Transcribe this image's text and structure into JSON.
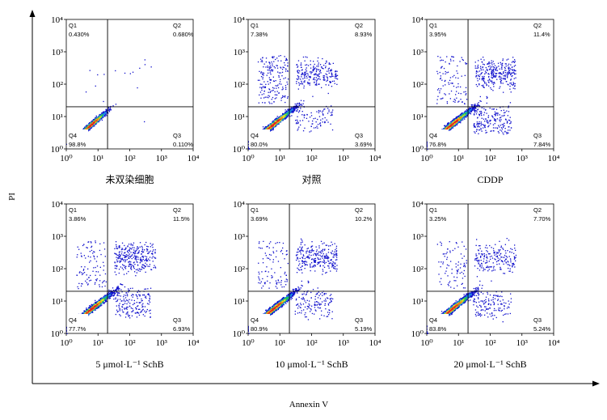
{
  "figure": {
    "ylabel": "PI",
    "xlabel": "Annexin V"
  },
  "chart_data": [
    {
      "type": "scatter",
      "title": "未双染细胞",
      "xscale": "log",
      "yscale": "log",
      "xlim": [
        1,
        10000
      ],
      "ylim": [
        1,
        10000
      ],
      "xticks": [
        "10⁰",
        "10¹",
        "10²",
        "10³",
        "10⁴"
      ],
      "yticks": [
        "10⁰",
        "10¹",
        "10²",
        "10³",
        "10⁴"
      ],
      "gate": {
        "x": 20,
        "y": 20
      },
      "quadrants": {
        "Q1": "0.430%",
        "Q2": "0.680%",
        "Q3": "0.110%",
        "Q4": "98.8%"
      },
      "color_scale": [
        "#1010cc",
        "#1e88e5",
        "#20c060",
        "#f0e020",
        "#f08020",
        "#e02020"
      ]
    },
    {
      "type": "scatter",
      "title": "对照",
      "xscale": "log",
      "yscale": "log",
      "xlim": [
        1,
        10000
      ],
      "ylim": [
        1,
        10000
      ],
      "xticks": [
        "10⁰",
        "10¹",
        "10²",
        "10³",
        "10⁴"
      ],
      "yticks": [
        "10⁰",
        "10¹",
        "10²",
        "10³",
        "10⁴"
      ],
      "gate": {
        "x": 20,
        "y": 20
      },
      "quadrants": {
        "Q1": "7.38%",
        "Q2": "8.93%",
        "Q3": "3.69%",
        "Q4": "80.0%"
      },
      "color_scale": [
        "#1010cc",
        "#1e88e5",
        "#20c060",
        "#f0e020",
        "#f08020",
        "#e02020"
      ]
    },
    {
      "type": "scatter",
      "title": "CDDP",
      "xscale": "log",
      "yscale": "log",
      "xlim": [
        1,
        10000
      ],
      "ylim": [
        1,
        10000
      ],
      "xticks": [
        "10⁰",
        "10¹",
        "10²",
        "10³",
        "10⁴"
      ],
      "yticks": [
        "10⁰",
        "10¹",
        "10²",
        "10³",
        "10⁴"
      ],
      "gate": {
        "x": 20,
        "y": 20
      },
      "quadrants": {
        "Q1": "3.95%",
        "Q2": "11.4%",
        "Q3": "7.84%",
        "Q4": "76.8%"
      },
      "color_scale": [
        "#1010cc",
        "#1e88e5",
        "#20c060",
        "#f0e020",
        "#f08020",
        "#e02020"
      ]
    },
    {
      "type": "scatter",
      "title": "5 μmol·L⁻¹ SchB",
      "xscale": "log",
      "yscale": "log",
      "xlim": [
        1,
        10000
      ],
      "ylim": [
        1,
        10000
      ],
      "xticks": [
        "10⁰",
        "10¹",
        "10²",
        "10³",
        "10⁴"
      ],
      "yticks": [
        "10⁰",
        "10¹",
        "10²",
        "10³",
        "10⁴"
      ],
      "gate": {
        "x": 20,
        "y": 20
      },
      "quadrants": {
        "Q1": "3.86%",
        "Q2": "11.5%",
        "Q3": "6.93%",
        "Q4": "77.7%"
      },
      "color_scale": [
        "#1010cc",
        "#1e88e5",
        "#20c060",
        "#f0e020",
        "#f08020",
        "#e02020"
      ]
    },
    {
      "type": "scatter",
      "title": "10 μmol·L⁻¹ SchB",
      "xscale": "log",
      "yscale": "log",
      "xlim": [
        1,
        10000
      ],
      "ylim": [
        1,
        10000
      ],
      "xticks": [
        "10⁰",
        "10¹",
        "10²",
        "10³",
        "10⁴"
      ],
      "yticks": [
        "10⁰",
        "10¹",
        "10²",
        "10³",
        "10⁴"
      ],
      "gate": {
        "x": 20,
        "y": 20
      },
      "quadrants": {
        "Q1": "3.69%",
        "Q2": "10.2%",
        "Q3": "5.19%",
        "Q4": "80.9%"
      },
      "color_scale": [
        "#1010cc",
        "#1e88e5",
        "#20c060",
        "#f0e020",
        "#f08020",
        "#e02020"
      ]
    },
    {
      "type": "scatter",
      "title": "20 μmol·L⁻¹ SchB",
      "xscale": "log",
      "yscale": "log",
      "xlim": [
        1,
        10000
      ],
      "ylim": [
        1,
        10000
      ],
      "xticks": [
        "10⁰",
        "10¹",
        "10²",
        "10³",
        "10⁴"
      ],
      "yticks": [
        "10⁰",
        "10¹",
        "10²",
        "10³",
        "10⁴"
      ],
      "gate": {
        "x": 20,
        "y": 20
      },
      "quadrants": {
        "Q1": "3.25%",
        "Q2": "7.70%",
        "Q3": "5.24%",
        "Q4": "83.8%"
      },
      "color_scale": [
        "#1010cc",
        "#1e88e5",
        "#20c060",
        "#f0e020",
        "#f08020",
        "#e02020"
      ]
    }
  ]
}
